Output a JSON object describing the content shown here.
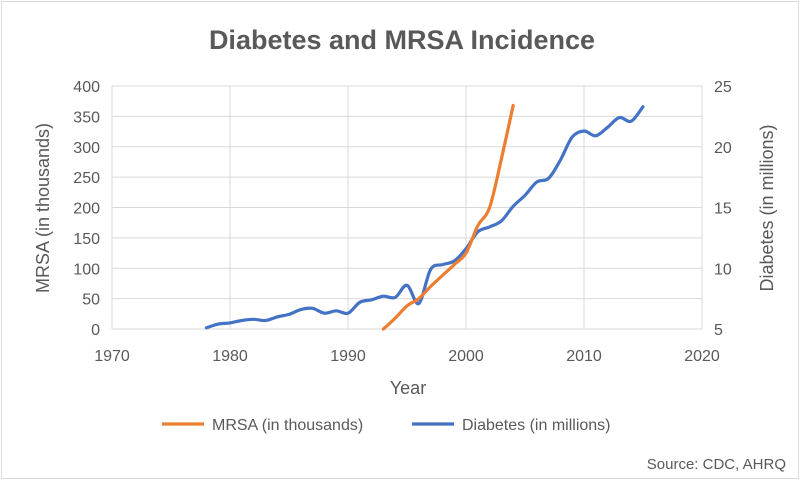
{
  "chart_data": {
    "type": "line",
    "title": "Diabetes and MRSA Incidence",
    "xlabel": "Year",
    "ylabel": "MRSA (in thousands)",
    "y2label": "Diabetes (in millions)",
    "xlim": [
      1970,
      2020
    ],
    "ylim": [
      0,
      400
    ],
    "y2lim": [
      5,
      25
    ],
    "xticks": [
      "1970",
      "1980",
      "1990",
      "2000",
      "2010",
      "2020"
    ],
    "yticks": [
      "0",
      "50",
      "100",
      "150",
      "200",
      "250",
      "300",
      "350",
      "400"
    ],
    "y2ticks": [
      "5",
      "10",
      "15",
      "20",
      "25"
    ],
    "grid": true,
    "legend_position": "bottom",
    "source": "Source: CDC, AHRQ",
    "series": [
      {
        "name": "MRSA (in thousands)",
        "axis": "left",
        "color": "#ed7d31",
        "x": [
          1993,
          1994,
          1995,
          1996,
          1997,
          1998,
          1999,
          2000,
          2001,
          2002,
          2003,
          2004
        ],
        "y": [
          0,
          18,
          38,
          50,
          70,
          88,
          106,
          125,
          170,
          200,
          280,
          368
        ]
      },
      {
        "name": "Diabetes (in millions)",
        "axis": "right",
        "color": "#4472c4",
        "x": [
          1978,
          1979,
          1980,
          1981,
          1982,
          1983,
          1984,
          1985,
          1986,
          1987,
          1988,
          1989,
          1990,
          1991,
          1992,
          1993,
          1994,
          1995,
          1996,
          1997,
          1998,
          1999,
          2000,
          2001,
          2002,
          2003,
          2004,
          2005,
          2006,
          2007,
          2008,
          2009,
          2010,
          2011,
          2012,
          2013,
          2014,
          2015
        ],
        "y": [
          5.1,
          5.4,
          5.5,
          5.7,
          5.8,
          5.7,
          6.0,
          6.2,
          6.6,
          6.7,
          6.3,
          6.5,
          6.3,
          7.2,
          7.4,
          7.7,
          7.6,
          8.6,
          7.1,
          9.9,
          10.3,
          10.6,
          11.6,
          13.0,
          13.4,
          13.9,
          15.1,
          16.0,
          17.1,
          17.4,
          18.9,
          20.8,
          21.3,
          20.9,
          21.6,
          22.4,
          22.1,
          23.3
        ]
      }
    ]
  }
}
